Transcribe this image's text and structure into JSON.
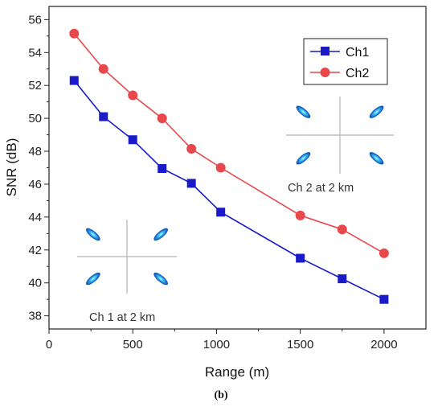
{
  "chart_data": {
    "type": "line",
    "xlabel": "Range (m)",
    "ylabel": "SNR (dB)",
    "xlim": [
      0,
      2250
    ],
    "ylim": [
      37.2,
      56.8
    ],
    "xticks": [
      0,
      500,
      1000,
      1500,
      2000
    ],
    "yticks": [
      38,
      40,
      42,
      44,
      46,
      48,
      50,
      52,
      54,
      56
    ],
    "grid": false,
    "legend": "top-right",
    "x": [
      150,
      325,
      500,
      675,
      850,
      1025,
      1500,
      1750,
      2000
    ],
    "series": [
      {
        "name": "Ch1",
        "color": "#1a1ac8",
        "marker": "square",
        "values": [
          52.3,
          50.1,
          48.7,
          46.95,
          46.05,
          44.3,
          41.5,
          40.25,
          39.0
        ]
      },
      {
        "name": "Ch2",
        "color": "#e8474b",
        "marker": "circle",
        "values": [
          55.15,
          53.0,
          51.4,
          50.0,
          48.15,
          47.0,
          44.1,
          43.25,
          41.8
        ]
      }
    ],
    "insets": [
      {
        "caption": "Ch 2  at 2 km",
        "position": "right"
      },
      {
        "caption": "Ch 1  at 2 km",
        "position": "lower-left"
      }
    ],
    "caption": "(b)"
  }
}
